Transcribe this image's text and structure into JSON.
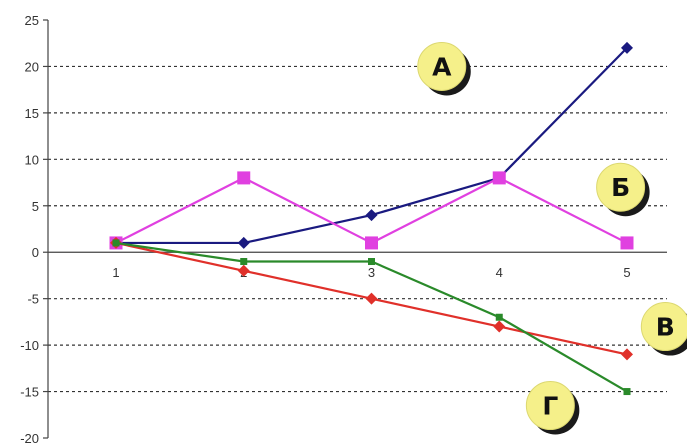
{
  "chart_data": {
    "type": "line",
    "x": [
      1,
      2,
      3,
      4,
      5
    ],
    "ylim": [
      -20,
      25
    ],
    "yticks": [
      25,
      20,
      15,
      10,
      5,
      0,
      -5,
      -10,
      -15,
      -20
    ],
    "xticks": [
      "1",
      "2",
      "3",
      "4",
      "5"
    ],
    "grid": true,
    "series": [
      {
        "label": "А",
        "color": "#1a1a80",
        "marker": "diamond",
        "values": [
          1,
          1,
          4,
          8,
          22
        ]
      },
      {
        "label": "Б",
        "color": "#e040e0",
        "marker": "square",
        "values": [
          1,
          8,
          1,
          8,
          1
        ]
      },
      {
        "label": "В",
        "color": "#e0302a",
        "marker": "diamond",
        "values": [
          1,
          -2,
          -5,
          -8,
          -11
        ]
      },
      {
        "label": "Г",
        "color": "#2a8a2a",
        "marker": "square",
        "values": [
          1,
          -1,
          -1,
          -7,
          -15
        ]
      }
    ],
    "callouts": [
      {
        "text": "А",
        "series": 0,
        "x": 3.55,
        "y": 20.0
      },
      {
        "text": "Б",
        "series": 1,
        "x": 4.95,
        "y": 7.0
      },
      {
        "text": "В",
        "series": 2,
        "x": 5.3,
        "y": -8.0
      },
      {
        "text": "Г",
        "series": 3,
        "x": 4.4,
        "y": -16.5
      }
    ],
    "callout_fill": "#f5f08a"
  }
}
